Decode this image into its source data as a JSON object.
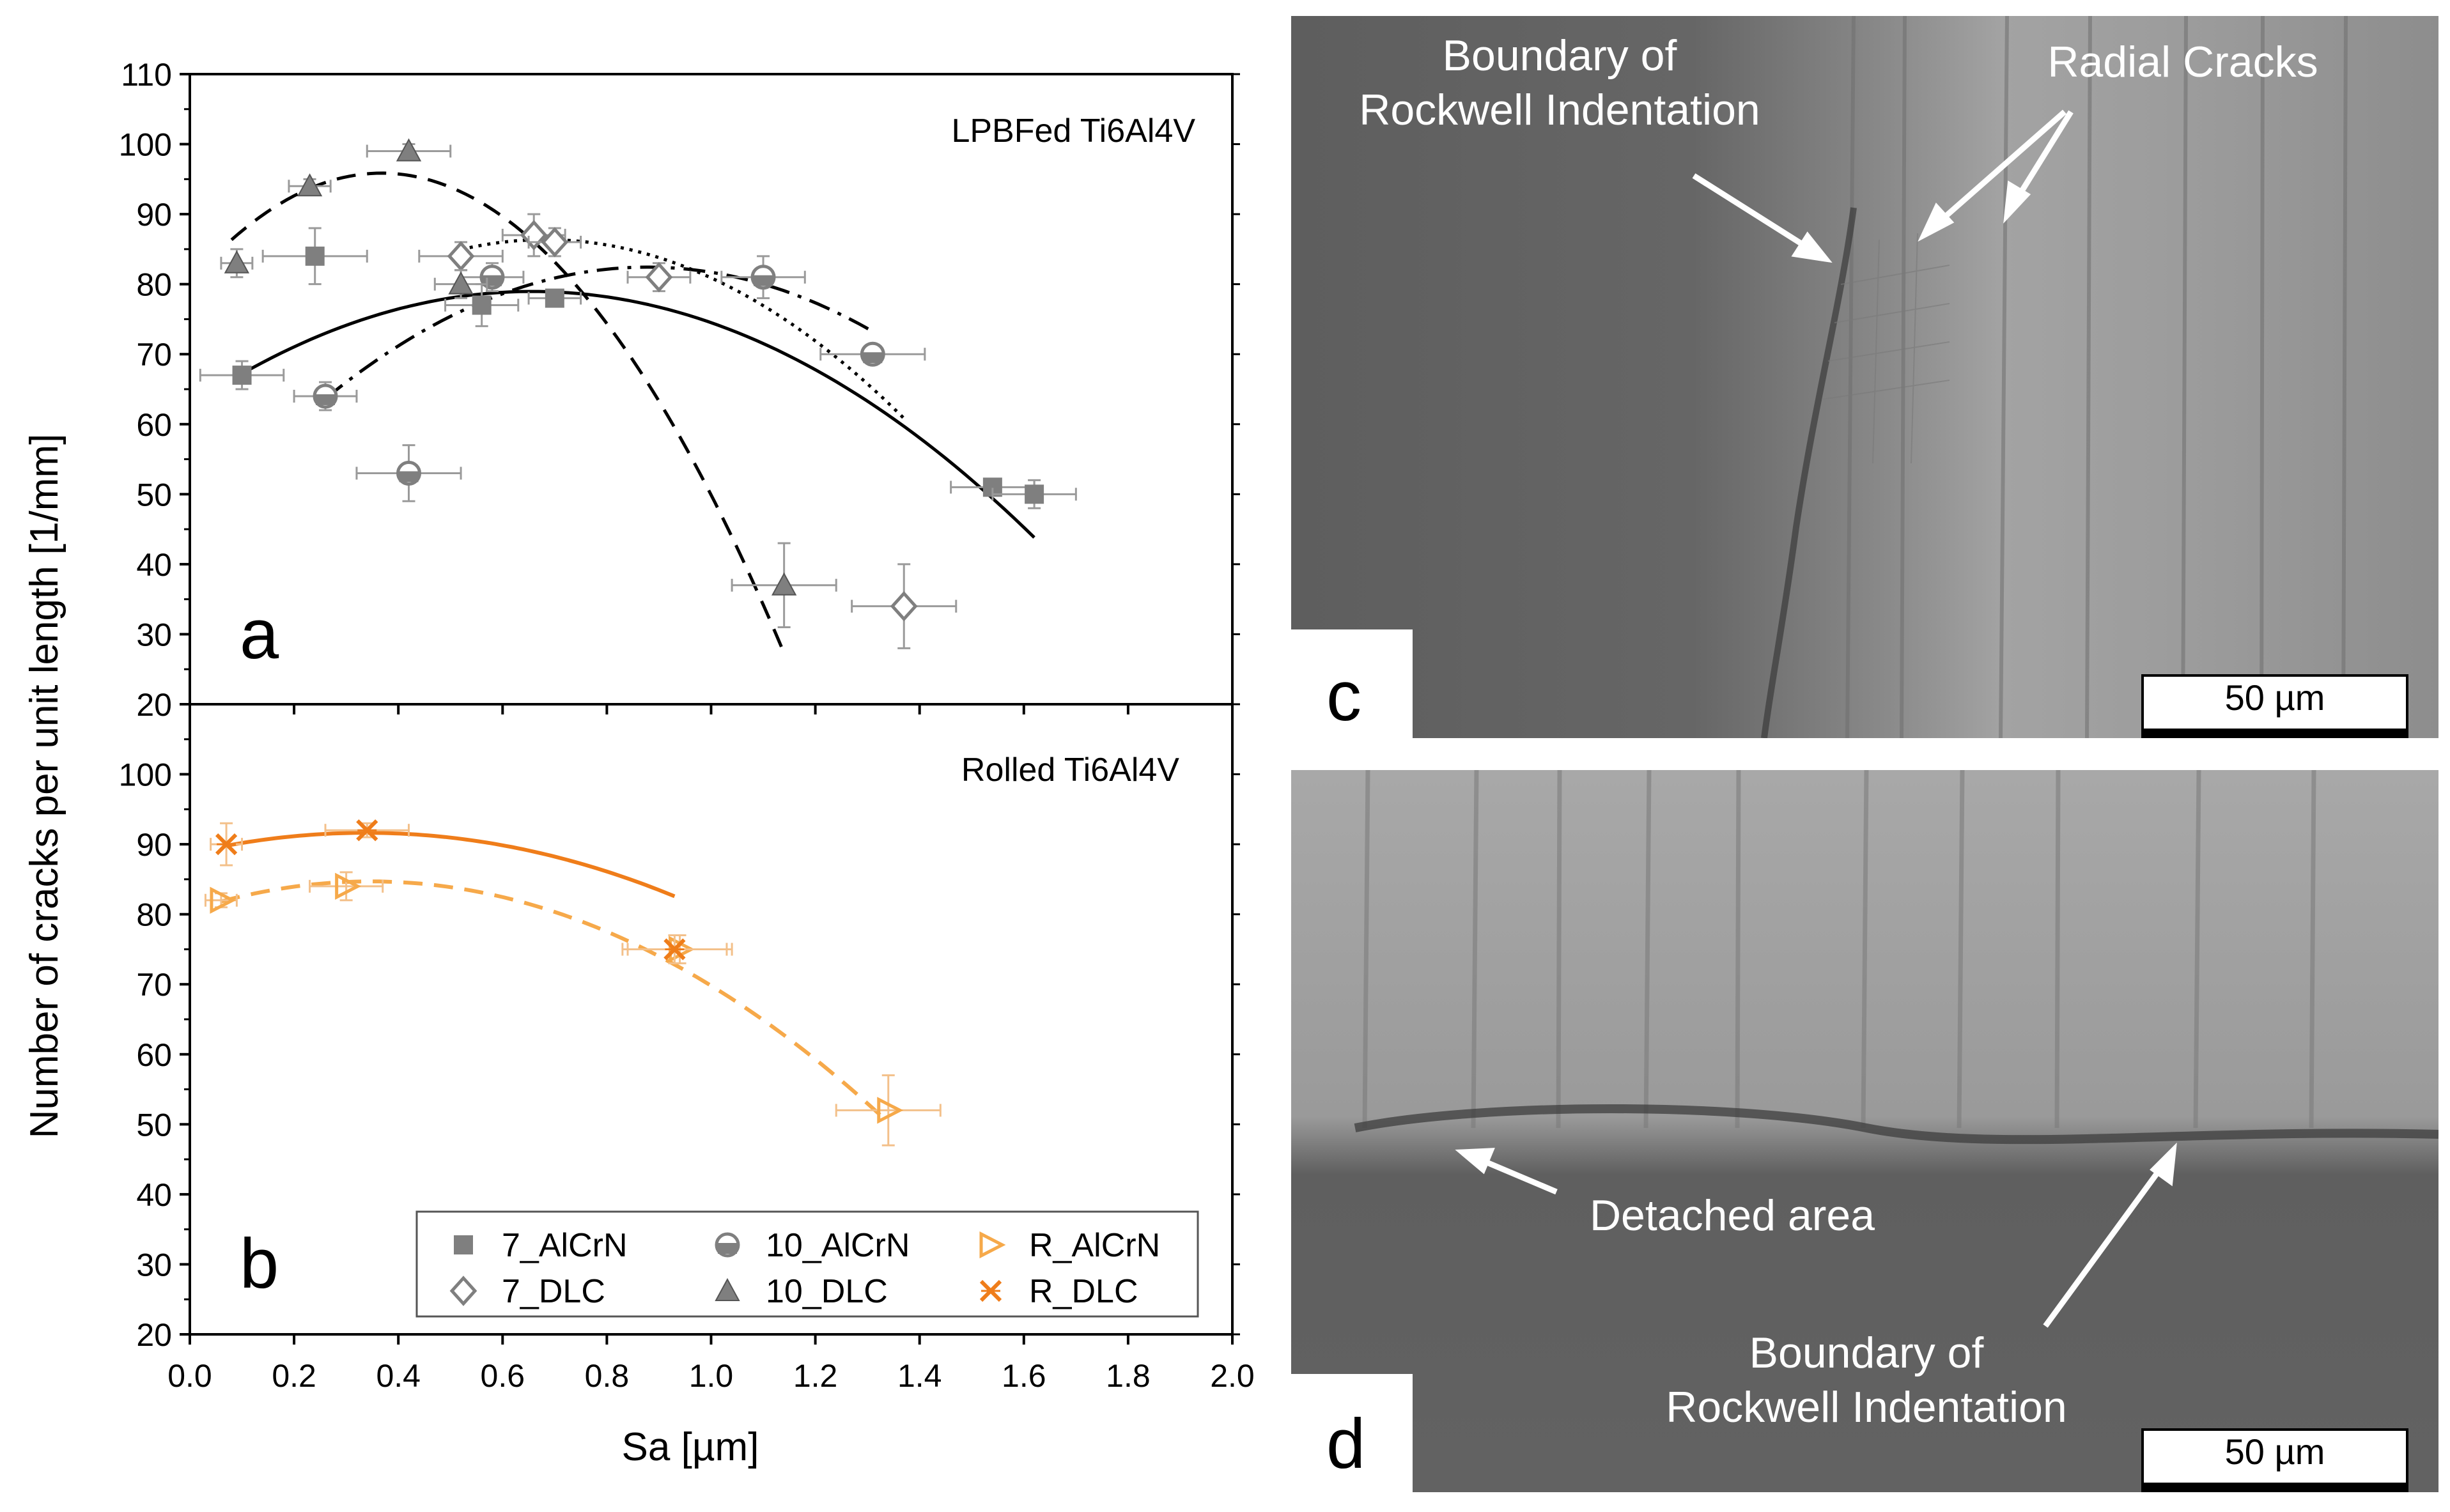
{
  "chart_data": [
    {
      "panel": "a",
      "type": "scatter",
      "title": "LPBFed Ti6Al4V",
      "xlabel": "Sa [µm]",
      "ylabel": "Number of cracks per unit length [1/mm]",
      "xlim": [
        0.0,
        2.0
      ],
      "ylim": [
        20,
        110
      ],
      "yticks": [
        20,
        30,
        40,
        50,
        60,
        70,
        80,
        90,
        100,
        110
      ],
      "series": [
        {
          "name": "7_AlCrN",
          "marker": "square",
          "color": "#7f7f7f",
          "x": [
            0.1,
            0.24,
            0.56,
            0.7,
            1.54,
            1.62
          ],
          "y": [
            67,
            84,
            77,
            78,
            51,
            50
          ],
          "xerr": [
            0.08,
            0.1,
            0.07,
            0.05,
            0.08,
            0.08
          ],
          "yerr": [
            2,
            4,
            3,
            1,
            1,
            2
          ],
          "fit": {
            "coef": [
              62.6,
              49.8,
              -37.9
            ],
            "xrange": [
              0.1,
              1.62
            ],
            "style": "solid"
          }
        },
        {
          "name": "10_AlCrN",
          "marker": "circle",
          "color": "#7f7f7f",
          "x": [
            0.26,
            0.42,
            0.58,
            1.1,
            1.31
          ],
          "y": [
            64,
            53,
            81,
            81,
            70
          ],
          "xerr": [
            0.06,
            0.1,
            0.06,
            0.08,
            0.1
          ],
          "yerr": [
            2,
            4,
            2,
            3,
            1
          ],
          "fit": {
            "coef": [
              44.5,
              86.4,
              -49.2
            ],
            "xrange": [
              0.26,
              1.31
            ],
            "style": "dashdot"
          }
        },
        {
          "name": "7_DLC",
          "marker": "diamond",
          "color": "#7f7f7f",
          "x": [
            0.52,
            0.66,
            0.7,
            0.9,
            1.37
          ],
          "y": [
            84,
            87,
            86,
            81,
            34
          ],
          "xerr": [
            0.08,
            0.06,
            0.05,
            0.06,
            0.1
          ],
          "yerr": [
            2,
            3,
            2,
            2,
            6
          ],
          "fit": {
            "coef": [
              61.3,
              73.5,
              -53.9
            ],
            "xrange": [
              0.52,
              1.37
            ],
            "style": "dotted"
          }
        },
        {
          "name": "10_DLC",
          "marker": "triangle",
          "color": "#7f7f7f",
          "x": [
            0.09,
            0.23,
            0.42,
            0.52,
            1.14
          ],
          "y": [
            83,
            94,
            99,
            80,
            37
          ],
          "xerr": [
            0.03,
            0.04,
            0.08,
            0.05,
            0.1
          ],
          "yerr": [
            2,
            1,
            1,
            2,
            6
          ],
          "fit": {
            "coef": [
              80.3,
              84.6,
              -115
            ],
            "xrange": [
              0.08,
              1.14
            ],
            "style": "dashed"
          }
        }
      ]
    },
    {
      "panel": "b",
      "type": "scatter",
      "title": "Rolled Ti6Al4V",
      "xlabel": "Sa [µm]",
      "ylabel": "Number of cracks per unit length [1/mm]",
      "xlim": [
        0.0,
        2.0
      ],
      "ylim": [
        20,
        100
      ],
      "yticks": [
        20,
        30,
        40,
        50,
        60,
        70,
        80,
        90,
        100
      ],
      "xticks": [
        "0.0",
        "0.2",
        "0.4",
        "0.6",
        "0.8",
        "1.0",
        "1.2",
        "1.4",
        "1.6",
        "1.8",
        "2.0"
      ],
      "series": [
        {
          "name": "R_AlCrN",
          "marker": "triangle-right",
          "color": "#f6a94a",
          "x": [
            0.06,
            0.3,
            0.94,
            1.34
          ],
          "y": [
            82,
            84,
            75,
            52
          ],
          "xerr": [
            0.03,
            0.07,
            0.1,
            0.1
          ],
          "yerr": [
            1,
            2,
            2,
            5
          ],
          "fit": {
            "coef": [
              80.5,
              24.2,
              -34.9
            ],
            "xrange": [
              0.06,
              1.34
            ],
            "style": "dashed"
          }
        },
        {
          "name": "R_DLC",
          "marker": "x",
          "color": "#ef7d1a",
          "x": [
            0.07,
            0.34,
            0.93
          ],
          "y": [
            90,
            92,
            75
          ],
          "xerr": [
            0.03,
            0.08,
            0.1
          ],
          "yerr": [
            3,
            1,
            2
          ],
          "fit": {
            "coef": [
              88.7,
              17.4,
              -25.8
            ],
            "xrange": [
              0.07,
              0.93
            ],
            "style": "solid"
          }
        }
      ],
      "legend": {
        "placement": "bottom-right",
        "order": [
          "7_AlCrN",
          "10_AlCrN",
          "R_AlCrN",
          "7_DLC",
          "10_DLC",
          "R_DLC"
        ]
      }
    }
  ],
  "panels": {
    "a": {
      "letter": "a"
    },
    "b": {
      "letter": "b"
    },
    "c": {
      "letter": "c",
      "annotations": {
        "boundary_line1": "Boundary of",
        "boundary_line2": "Rockwell Indentation",
        "radial": "Radial Cracks"
      },
      "scalebar": "50 µm"
    },
    "d": {
      "letter": "d",
      "annotations": {
        "detached": "Detached area",
        "boundary_line1": "Boundary of",
        "boundary_line2": "Rockwell Indentation"
      },
      "scalebar": "50 µm"
    }
  },
  "colors": {
    "grey_marker": "#7f7f7f",
    "orange_dark": "#ef7d1a",
    "orange_light": "#f6a94a",
    "micrograph": "#6a6a6a"
  }
}
